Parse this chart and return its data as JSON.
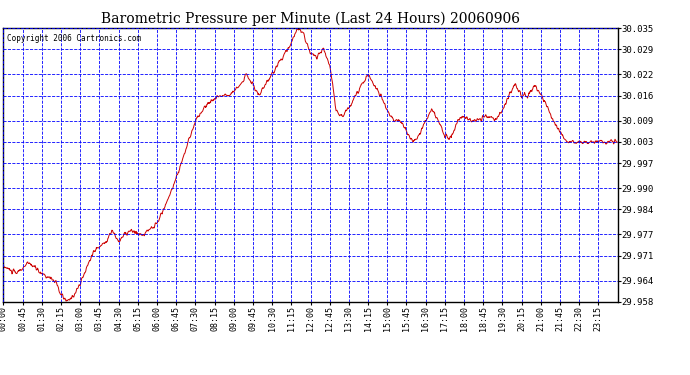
{
  "title": "Barometric Pressure per Minute (Last 24 Hours) 20060906",
  "copyright": "Copyright 2006 Cartronics.com",
  "line_color": "#cc0000",
  "bg_color": "#ffffff",
  "plot_bg_color": "#ffffff",
  "grid_color": "#0000ff",
  "border_color": "#000000",
  "ylim": [
    29.958,
    30.035
  ],
  "yticks": [
    29.958,
    29.964,
    29.971,
    29.977,
    29.984,
    29.99,
    29.997,
    30.003,
    30.009,
    30.016,
    30.022,
    30.029,
    30.035
  ],
  "ytick_labels": [
    "29.958",
    "29.964",
    "29.971",
    "29.977",
    "29.984",
    "29.990",
    "29.997",
    "30.003",
    "30.009",
    "30.016",
    "30.022",
    "30.029",
    "30.035"
  ],
  "xtick_labels": [
    "00:00",
    "00:45",
    "01:30",
    "02:15",
    "03:00",
    "03:45",
    "04:30",
    "05:15",
    "06:00",
    "06:45",
    "07:30",
    "08:15",
    "09:00",
    "09:45",
    "10:30",
    "11:15",
    "12:00",
    "12:45",
    "13:30",
    "14:15",
    "15:00",
    "15:45",
    "16:30",
    "17:15",
    "18:00",
    "18:45",
    "19:30",
    "20:15",
    "21:00",
    "21:45",
    "22:30",
    "23:15"
  ],
  "seed": 10,
  "noise_scale": 0.0005,
  "line_width": 0.7
}
